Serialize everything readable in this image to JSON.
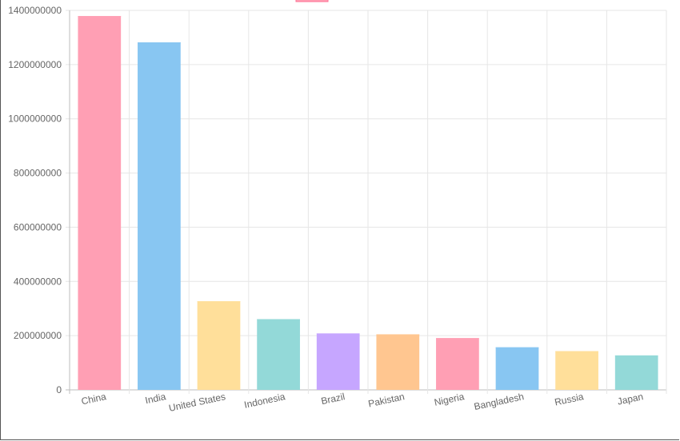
{
  "chart_data": {
    "type": "bar",
    "categories": [
      "China",
      "India",
      "United States",
      "Indonesia",
      "Brazil",
      "Pakistan",
      "Nigeria",
      "Bangladesh",
      "Russia",
      "Japan"
    ],
    "values": [
      1379000000,
      1282000000,
      327000000,
      261000000,
      208000000,
      205000000,
      191000000,
      157000000,
      143000000,
      127000000
    ],
    "ylim": [
      0,
      1400000000
    ],
    "yticks": [
      "0",
      "200000000",
      "400000000",
      "600000000",
      "800000000",
      "1000000000",
      "1200000000",
      "1400000000"
    ],
    "grid": true,
    "legend_position": "top",
    "colors": {
      "fill": [
        "#ff9fb4",
        "#88c6f2",
        "#ffdf9a",
        "#93d9d8",
        "#c6a6ff",
        "#ffc690",
        "#ff9fb4",
        "#88c6f2",
        "#ffdf9a",
        "#93d9d8"
      ],
      "legend_swatch": "#ff9fb4"
    }
  }
}
